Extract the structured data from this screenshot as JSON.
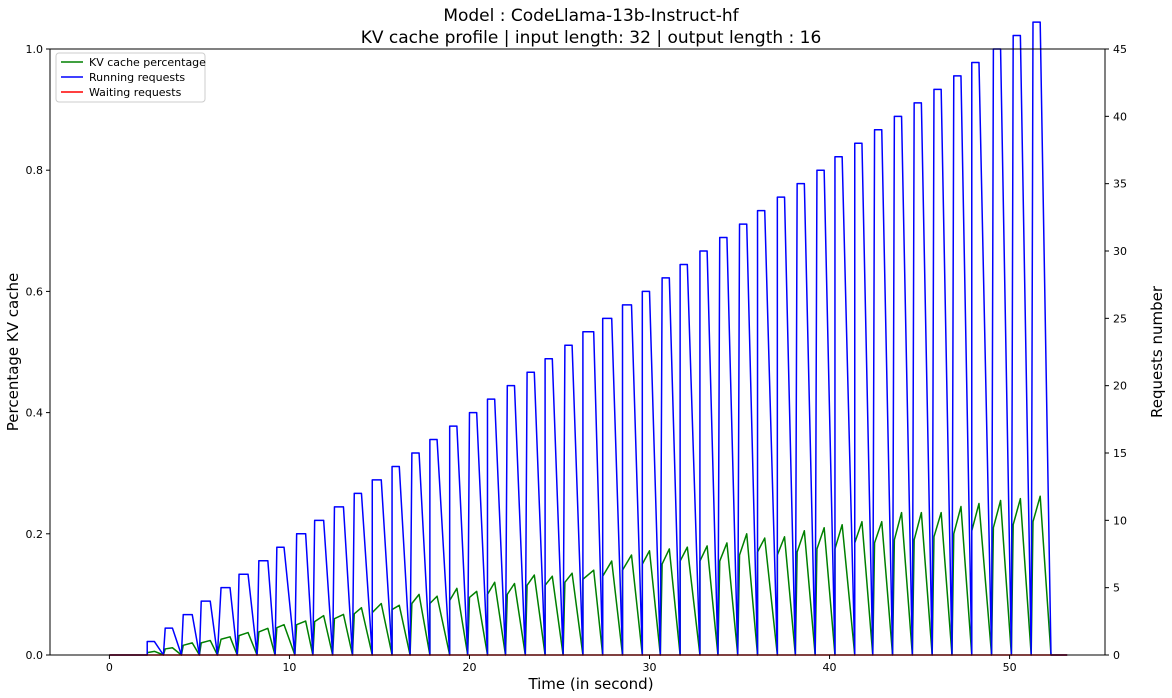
{
  "chart_data": {
    "type": "line",
    "title": "Model : CodeLlama-13b-Instruct-hf",
    "subtitle": "KV cache profile | input length: 32 | output length : 16",
    "xlabel": "Time (in second)",
    "ylabel_left": "Percentage KV cache",
    "ylabel_right": "Requests number",
    "xlim": [
      -3.3,
      55.3
    ],
    "ylim_left": [
      0,
      1.0
    ],
    "ylim_right": [
      0,
      45
    ],
    "x_ticks": [
      0,
      10,
      20,
      30,
      40,
      50
    ],
    "y_ticks_left": [
      0.0,
      0.2,
      0.4,
      0.6,
      0.8,
      1.0
    ],
    "y_ticks_right": [
      0,
      5,
      10,
      15,
      20,
      25,
      30,
      35,
      40,
      45
    ],
    "grid": false,
    "legend_position": "top-left",
    "colors": {
      "kv": "#008000",
      "running": "#0000ff",
      "waiting": "#ff0000"
    },
    "series": [
      {
        "name": "KV cache percentage",
        "axis": "left",
        "color": "#008000",
        "points": [
          [
            0,
            0
          ],
          [
            2.1,
            0
          ],
          [
            2.1,
            0.004
          ],
          [
            2.5,
            0.006
          ],
          [
            3.0,
            0
          ],
          [
            3.1,
            0.01
          ],
          [
            3.5,
            0.012
          ],
          [
            4.0,
            0
          ],
          [
            4.1,
            0.016
          ],
          [
            4.6,
            0.02
          ],
          [
            5.0,
            0
          ],
          [
            5.1,
            0.02
          ],
          [
            5.6,
            0.024
          ],
          [
            6.0,
            0
          ],
          [
            6.2,
            0.026
          ],
          [
            6.7,
            0.03
          ],
          [
            7.1,
            0
          ],
          [
            7.2,
            0.032
          ],
          [
            7.7,
            0.037
          ],
          [
            8.2,
            0
          ],
          [
            8.3,
            0.038
          ],
          [
            8.8,
            0.044
          ],
          [
            9.2,
            0
          ],
          [
            9.3,
            0.045
          ],
          [
            9.7,
            0.05
          ],
          [
            10.3,
            0
          ],
          [
            10.4,
            0.05
          ],
          [
            10.9,
            0.056
          ],
          [
            11.3,
            0
          ],
          [
            11.4,
            0.055
          ],
          [
            11.9,
            0.065
          ],
          [
            12.4,
            0
          ],
          [
            12.5,
            0.06
          ],
          [
            13.0,
            0.067
          ],
          [
            13.5,
            0
          ],
          [
            13.6,
            0.068
          ],
          [
            14.0,
            0.078
          ],
          [
            14.6,
            0
          ],
          [
            14.6,
            0.07
          ],
          [
            15.1,
            0.085
          ],
          [
            15.7,
            0
          ],
          [
            15.7,
            0.075
          ],
          [
            16.1,
            0.082
          ],
          [
            16.7,
            0
          ],
          [
            16.8,
            0.085
          ],
          [
            17.2,
            0.1
          ],
          [
            17.8,
            0
          ],
          [
            17.8,
            0.085
          ],
          [
            18.2,
            0.097
          ],
          [
            18.9,
            0
          ],
          [
            18.9,
            0.09
          ],
          [
            19.3,
            0.11
          ],
          [
            19.9,
            0
          ],
          [
            20.0,
            0.095
          ],
          [
            20.4,
            0.105
          ],
          [
            21.0,
            0
          ],
          [
            21.0,
            0.1
          ],
          [
            21.4,
            0.12
          ],
          [
            22.0,
            0
          ],
          [
            22.1,
            0.1
          ],
          [
            22.5,
            0.118
          ],
          [
            23.1,
            0
          ],
          [
            23.2,
            0.115
          ],
          [
            23.6,
            0.132
          ],
          [
            24.2,
            0
          ],
          [
            24.2,
            0.115
          ],
          [
            24.6,
            0.13
          ],
          [
            25.2,
            0
          ],
          [
            25.3,
            0.12
          ],
          [
            25.7,
            0.135
          ],
          [
            26.3,
            0
          ],
          [
            26.3,
            0.125
          ],
          [
            26.9,
            0.14
          ],
          [
            27.4,
            0
          ],
          [
            27.4,
            0.13
          ],
          [
            27.9,
            0.155
          ],
          [
            28.5,
            0
          ],
          [
            28.5,
            0.14
          ],
          [
            29.0,
            0.165
          ],
          [
            29.6,
            0
          ],
          [
            29.6,
            0.15
          ],
          [
            30.0,
            0.172
          ],
          [
            30.6,
            0
          ],
          [
            30.7,
            0.15
          ],
          [
            31.1,
            0.175
          ],
          [
            31.7,
            0
          ],
          [
            31.7,
            0.155
          ],
          [
            32.1,
            0.178
          ],
          [
            32.8,
            0
          ],
          [
            32.8,
            0.155
          ],
          [
            33.2,
            0.18
          ],
          [
            33.8,
            0
          ],
          [
            33.9,
            0.155
          ],
          [
            34.3,
            0.185
          ],
          [
            34.9,
            0
          ],
          [
            35.0,
            0.165
          ],
          [
            35.4,
            0.2
          ],
          [
            36.0,
            0
          ],
          [
            36.0,
            0.17
          ],
          [
            36.4,
            0.193
          ],
          [
            37.1,
            0
          ],
          [
            37.1,
            0.165
          ],
          [
            37.5,
            0.195
          ],
          [
            38.1,
            0
          ],
          [
            38.2,
            0.17
          ],
          [
            38.6,
            0.205
          ],
          [
            39.2,
            0
          ],
          [
            39.3,
            0.175
          ],
          [
            39.7,
            0.21
          ],
          [
            40.3,
            0
          ],
          [
            40.3,
            0.175
          ],
          [
            40.7,
            0.215
          ],
          [
            41.4,
            0
          ],
          [
            41.4,
            0.185
          ],
          [
            41.8,
            0.22
          ],
          [
            42.4,
            0
          ],
          [
            42.5,
            0.185
          ],
          [
            42.9,
            0.22
          ],
          [
            43.5,
            0
          ],
          [
            43.6,
            0.19
          ],
          [
            44.0,
            0.235
          ],
          [
            44.6,
            0
          ],
          [
            44.7,
            0.19
          ],
          [
            45.1,
            0.235
          ],
          [
            45.7,
            0
          ],
          [
            45.8,
            0.195
          ],
          [
            46.2,
            0.235
          ],
          [
            46.8,
            0
          ],
          [
            46.9,
            0.2
          ],
          [
            47.3,
            0.245
          ],
          [
            47.9,
            0
          ],
          [
            47.9,
            0.205
          ],
          [
            48.3,
            0.25
          ],
          [
            49.0,
            0
          ],
          [
            49.1,
            0.21
          ],
          [
            49.5,
            0.255
          ],
          [
            50.1,
            0
          ],
          [
            50.2,
            0.215
          ],
          [
            50.6,
            0.258
          ],
          [
            51.2,
            0
          ],
          [
            51.3,
            0.22
          ],
          [
            51.7,
            0.262
          ],
          [
            52.3,
            0
          ],
          [
            53.2,
            0
          ]
        ]
      },
      {
        "name": "Running requests",
        "axis": "right",
        "color": "#0000ff",
        "points": [
          [
            0,
            0
          ],
          [
            2.1,
            0
          ],
          [
            2.1,
            1
          ],
          [
            2.5,
            1
          ],
          [
            3.0,
            0
          ],
          [
            3.1,
            2
          ],
          [
            3.5,
            2
          ],
          [
            4.0,
            0
          ],
          [
            4.1,
            3
          ],
          [
            4.6,
            3
          ],
          [
            5.0,
            0
          ],
          [
            5.1,
            4
          ],
          [
            5.6,
            4
          ],
          [
            6.0,
            0
          ],
          [
            6.2,
            5
          ],
          [
            6.7,
            5
          ],
          [
            7.1,
            0
          ],
          [
            7.2,
            6
          ],
          [
            7.7,
            6
          ],
          [
            8.2,
            0
          ],
          [
            8.3,
            7
          ],
          [
            8.8,
            7
          ],
          [
            9.2,
            0
          ],
          [
            9.3,
            8
          ],
          [
            9.7,
            8
          ],
          [
            10.3,
            0
          ],
          [
            10.4,
            9
          ],
          [
            10.9,
            9
          ],
          [
            11.3,
            0
          ],
          [
            11.4,
            10
          ],
          [
            11.9,
            10
          ],
          [
            12.4,
            0
          ],
          [
            12.5,
            11
          ],
          [
            13.0,
            11
          ],
          [
            13.5,
            0
          ],
          [
            13.6,
            12
          ],
          [
            14.0,
            12
          ],
          [
            14.6,
            0
          ],
          [
            14.6,
            13
          ],
          [
            15.1,
            13
          ],
          [
            15.7,
            0
          ],
          [
            15.7,
            14
          ],
          [
            16.1,
            14
          ],
          [
            16.7,
            0
          ],
          [
            16.8,
            15
          ],
          [
            17.2,
            15
          ],
          [
            17.8,
            0
          ],
          [
            17.8,
            16
          ],
          [
            18.2,
            16
          ],
          [
            18.9,
            0
          ],
          [
            18.9,
            17
          ],
          [
            19.3,
            17
          ],
          [
            19.9,
            0
          ],
          [
            20.0,
            18
          ],
          [
            20.4,
            18
          ],
          [
            21.0,
            0
          ],
          [
            21.0,
            19
          ],
          [
            21.4,
            19
          ],
          [
            22.0,
            0
          ],
          [
            22.1,
            20
          ],
          [
            22.5,
            20
          ],
          [
            23.1,
            0
          ],
          [
            23.2,
            21
          ],
          [
            23.6,
            21
          ],
          [
            24.2,
            0
          ],
          [
            24.2,
            22
          ],
          [
            24.6,
            22
          ],
          [
            25.2,
            0
          ],
          [
            25.3,
            23
          ],
          [
            25.7,
            23
          ],
          [
            26.3,
            0
          ],
          [
            26.3,
            24
          ],
          [
            26.9,
            24
          ],
          [
            27.4,
            0
          ],
          [
            27.4,
            25
          ],
          [
            27.9,
            25
          ],
          [
            28.5,
            0
          ],
          [
            28.5,
            26
          ],
          [
            29.0,
            26
          ],
          [
            29.6,
            0
          ],
          [
            29.6,
            27
          ],
          [
            30.0,
            27
          ],
          [
            30.6,
            0
          ],
          [
            30.7,
            28
          ],
          [
            31.1,
            28
          ],
          [
            31.7,
            0
          ],
          [
            31.7,
            29
          ],
          [
            32.1,
            29
          ],
          [
            32.8,
            0
          ],
          [
            32.8,
            30
          ],
          [
            33.2,
            30
          ],
          [
            33.8,
            0
          ],
          [
            33.9,
            31
          ],
          [
            34.3,
            31
          ],
          [
            34.9,
            0
          ],
          [
            35.0,
            32
          ],
          [
            35.4,
            32
          ],
          [
            36.0,
            0
          ],
          [
            36.0,
            33
          ],
          [
            36.4,
            33
          ],
          [
            37.1,
            0
          ],
          [
            37.1,
            34
          ],
          [
            37.5,
            34
          ],
          [
            38.1,
            0
          ],
          [
            38.2,
            35
          ],
          [
            38.6,
            35
          ],
          [
            39.2,
            0
          ],
          [
            39.3,
            36
          ],
          [
            39.7,
            36
          ],
          [
            40.3,
            0
          ],
          [
            40.3,
            37
          ],
          [
            40.7,
            37
          ],
          [
            41.4,
            0
          ],
          [
            41.4,
            38
          ],
          [
            41.8,
            38
          ],
          [
            42.4,
            0
          ],
          [
            42.5,
            39
          ],
          [
            42.9,
            39
          ],
          [
            43.5,
            0
          ],
          [
            43.6,
            40
          ],
          [
            44.0,
            40
          ],
          [
            44.6,
            0
          ],
          [
            44.7,
            41
          ],
          [
            45.1,
            41
          ],
          [
            45.7,
            0
          ],
          [
            45.8,
            42
          ],
          [
            46.2,
            42
          ],
          [
            46.8,
            0
          ],
          [
            46.9,
            43
          ],
          [
            47.3,
            43
          ],
          [
            47.9,
            0
          ],
          [
            47.9,
            44
          ],
          [
            48.3,
            44
          ],
          [
            49.0,
            0
          ],
          [
            49.1,
            45
          ],
          [
            49.5,
            45
          ],
          [
            50.1,
            0
          ],
          [
            50.2,
            46
          ],
          [
            50.6,
            46
          ],
          [
            51.2,
            0
          ],
          [
            51.3,
            47
          ],
          [
            51.7,
            47
          ],
          [
            52.3,
            0
          ],
          [
            53.2,
            0
          ]
        ]
      },
      {
        "name": "Waiting requests",
        "axis": "right",
        "color": "#ff0000",
        "points": [
          [
            0,
            0
          ],
          [
            53.2,
            0
          ]
        ]
      }
    ]
  }
}
